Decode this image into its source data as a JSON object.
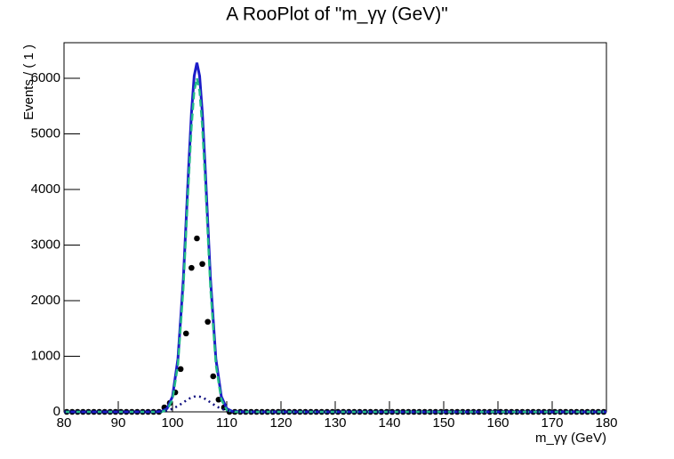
{
  "chart_data": {
    "type": "rooplot",
    "title": "A RooPlot of \"m_γγ (GeV)\"",
    "x_label": "m_γγ (GeV)",
    "y_label": "Events / ( 1 )",
    "xlim": [
      80,
      180
    ],
    "xticks": [
      80,
      90,
      100,
      110,
      120,
      130,
      140,
      150,
      160,
      170,
      180
    ],
    "ylim": [
      0,
      6640
    ],
    "yticks": [
      0,
      1000,
      2000,
      3000,
      4000,
      5000,
      6000
    ],
    "series": [
      {
        "style": "points",
        "color": "#000000",
        "x": [
          80.5,
          81.5,
          82.5,
          83.5,
          84.5,
          85.5,
          86.5,
          87.5,
          88.5,
          89.5,
          90.5,
          91.5,
          92.5,
          93.5,
          94.5,
          95.5,
          96.5,
          97.5,
          98.5,
          99.5,
          100.5,
          101.5,
          102.5,
          103.5,
          104.5,
          105.5,
          106.5,
          107.5,
          108.5,
          109.5,
          110.5,
          111.5,
          112.5,
          113.5,
          114.5,
          115.5,
          116.5,
          117.5,
          118.5,
          119.5,
          120.5,
          121.5,
          122.5,
          123.5,
          124.5,
          125.5,
          126.5,
          127.5,
          128.5,
          129.5,
          130.5,
          131.5,
          132.5,
          133.5,
          134.5,
          135.5,
          136.5,
          137.5,
          138.5,
          139.5,
          140.5,
          141.5,
          142.5,
          143.5,
          144.5,
          145.5,
          146.5,
          147.5,
          148.5,
          149.5,
          150.5,
          151.5,
          152.5,
          153.5,
          154.5,
          155.5,
          156.5,
          157.5,
          158.5,
          159.5,
          160.5,
          161.5,
          162.5,
          163.5,
          164.5,
          165.5,
          166.5,
          167.5,
          168.5,
          169.5,
          170.5,
          171.5,
          172.5,
          173.5,
          174.5,
          175.5,
          176.5,
          177.5,
          178.5,
          179.5
        ],
        "values": [
          0,
          0,
          0,
          0,
          0,
          0,
          0,
          0,
          0,
          0,
          0,
          0,
          0,
          0,
          0,
          0,
          0,
          0,
          80,
          160,
          350,
          770,
          1410,
          2590,
          3120,
          2660,
          1620,
          640,
          220,
          80,
          0,
          0,
          0,
          0,
          0,
          0,
          0,
          0,
          0,
          0,
          0,
          0,
          0,
          0,
          0,
          0,
          0,
          0,
          0,
          0,
          0,
          0,
          0,
          0,
          0,
          0,
          0,
          0,
          0,
          0,
          0,
          0,
          0,
          0,
          0,
          0,
          0,
          0,
          0,
          0,
          0,
          0,
          0,
          0,
          0,
          0,
          0,
          0,
          0,
          0,
          0,
          0,
          0,
          0,
          0,
          0,
          0,
          0,
          0,
          0,
          0,
          0,
          0,
          0,
          0,
          0,
          0,
          0,
          0,
          0
        ]
      },
      {
        "style": "solid",
        "color": "#1c1cc8",
        "x": [
          80,
          95,
          97,
          98,
          99,
          100,
          101,
          102,
          103,
          103.5,
          104,
          104.5,
          105,
          105.5,
          106,
          107,
          108,
          109,
          110,
          111,
          113,
          180
        ],
        "values": [
          0,
          0,
          1,
          9,
          59,
          276,
          950,
          2390,
          4440,
          5380,
          6040,
          6280,
          6040,
          5380,
          4440,
          2390,
          950,
          276,
          59,
          9,
          0,
          0
        ]
      },
      {
        "style": "dashed",
        "color": "#22bb88",
        "x": [
          80,
          95,
          97,
          98,
          99,
          100,
          101,
          102,
          103,
          103.5,
          104,
          104.5,
          105,
          105.5,
          106,
          107,
          108,
          109,
          110,
          111,
          113,
          180
        ],
        "values": [
          0,
          0,
          0,
          0,
          34,
          221,
          845,
          2220,
          4206,
          5122,
          5766,
          6000,
          5766,
          5122,
          4206,
          2220,
          845,
          221,
          34,
          0,
          0,
          0
        ]
      },
      {
        "style": "dotted",
        "color": "#101080",
        "x": [
          80,
          95,
          97,
          98,
          99,
          100,
          101,
          102,
          103,
          103.5,
          104,
          104.5,
          105,
          105.5,
          106,
          107,
          108,
          109,
          110,
          111,
          113,
          180
        ],
        "values": [
          0,
          0,
          3,
          10,
          25,
          55,
          105,
          170,
          234,
          258,
          274,
          280,
          274,
          258,
          234,
          170,
          105,
          55,
          25,
          10,
          1,
          0
        ]
      }
    ]
  }
}
